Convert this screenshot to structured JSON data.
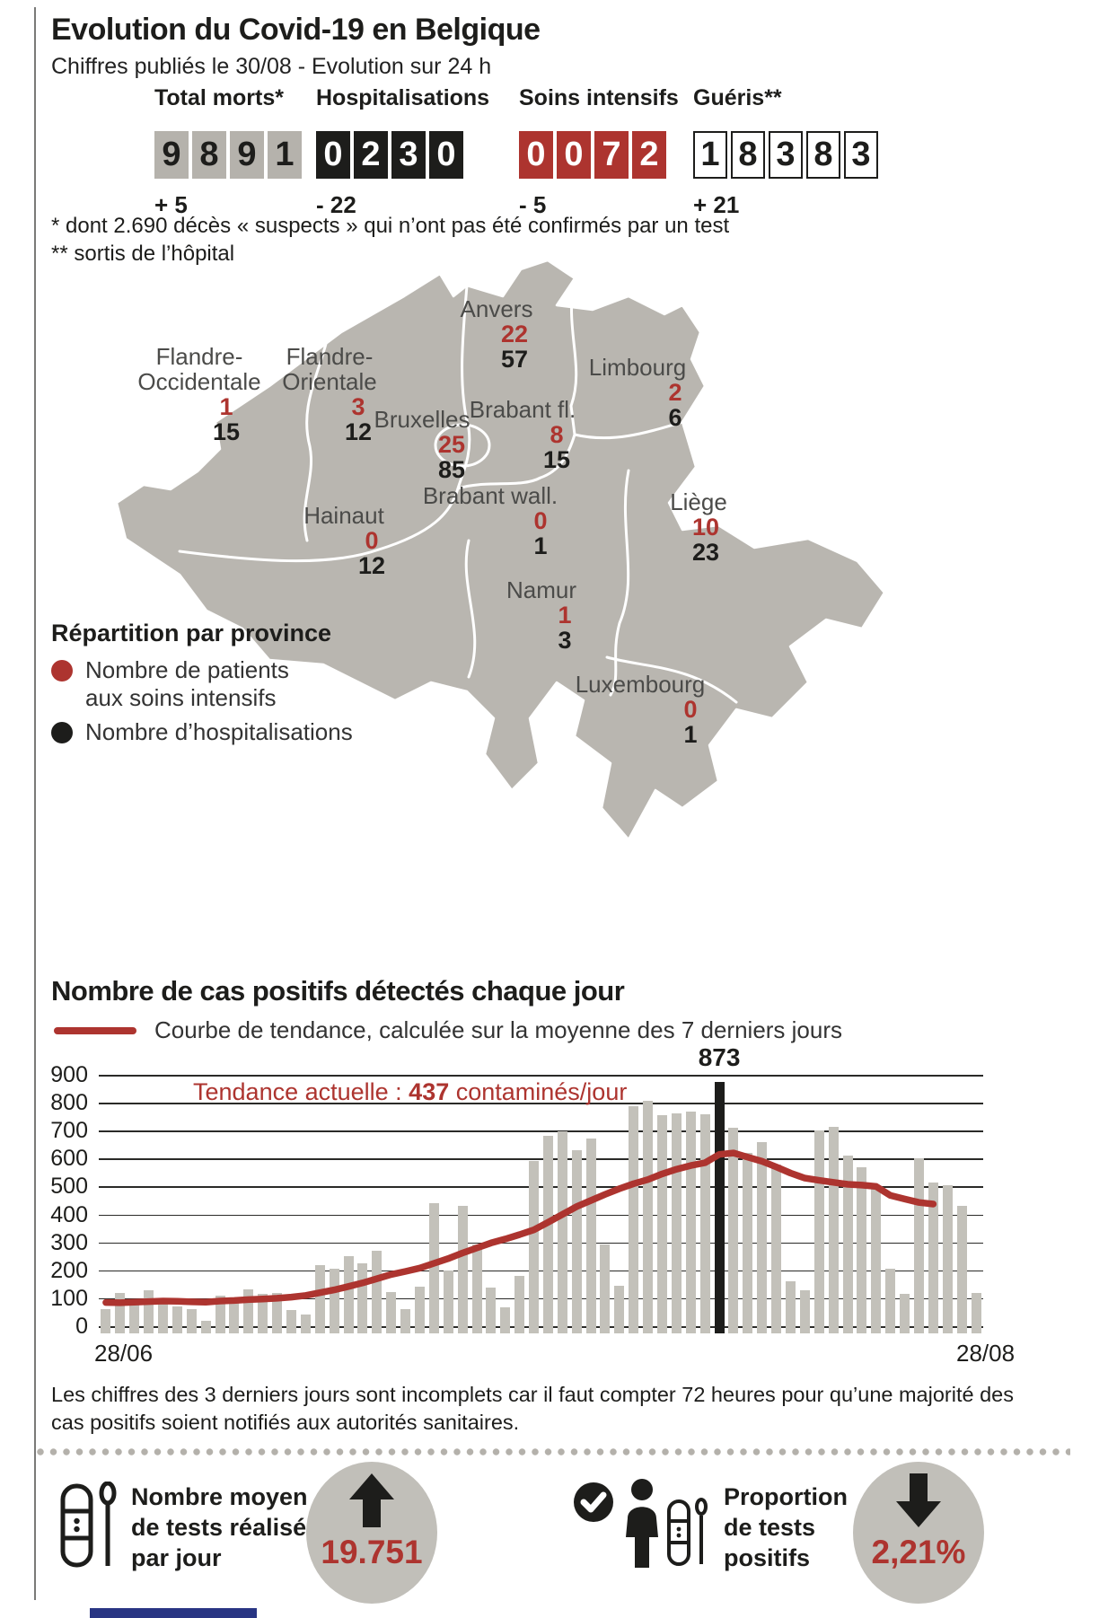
{
  "header": {
    "title": "Evolution du Covid-19 en Belgique",
    "subtitle": "Chiffres publiés le 30/08 - Evolution sur 24 h",
    "counters": [
      {
        "label": "Total morts*",
        "digits": [
          "9",
          "8",
          "9",
          "1"
        ],
        "change": "+ 5",
        "style": "gray"
      },
      {
        "label": "Hospitalisations",
        "digits": [
          "0",
          "2",
          "3",
          "0"
        ],
        "change": "- 22",
        "style": "black"
      },
      {
        "label": "Soins intensifs",
        "digits": [
          "0",
          "0",
          "7",
          "2"
        ],
        "change": "- 5",
        "style": "red"
      },
      {
        "label": "Guéris**",
        "digits": [
          "1",
          "8",
          "3",
          "8",
          "3"
        ],
        "change": "+ 21",
        "style": "outline"
      }
    ],
    "footnote_line1": "* dont 2.690 décès « suspects » qui n’ont pas été confirmés par un test",
    "footnote_line2": "** sortis de l’hôpital"
  },
  "map": {
    "legend_title": "Répartition par province",
    "legend_icu": "Nombre de patients\naux soins intensifs",
    "legend_hosp": "Nombre d’hospitalisations",
    "provinces": [
      {
        "name": "Flandre-\nOccidentale",
        "icu": "1",
        "hosp": "15"
      },
      {
        "name": "Flandre-\nOrientale",
        "icu": "3",
        "hosp": "12"
      },
      {
        "name": "Anvers",
        "icu": "22",
        "hosp": "57"
      },
      {
        "name": "Limbourg",
        "icu": "2",
        "hosp": "6"
      },
      {
        "name": "Bruxelles",
        "icu": "25",
        "hosp": "85"
      },
      {
        "name": "Brabant fl.",
        "icu": "8",
        "hosp": "15"
      },
      {
        "name": "Brabant wall.",
        "icu": "0",
        "hosp": "1"
      },
      {
        "name": "Liège",
        "icu": "10",
        "hosp": "23"
      },
      {
        "name": "Hainaut",
        "icu": "0",
        "hosp": "12"
      },
      {
        "name": "Namur",
        "icu": "1",
        "hosp": "3"
      },
      {
        "name": "Luxembourg",
        "icu": "0",
        "hosp": "1"
      }
    ]
  },
  "chart": {
    "title": "Nombre de cas positifs détectés chaque jour",
    "legend": "Courbe de tendance, calculée sur la moyenne des 7 derniers jours",
    "trend_prefix": "Tendance actuelle : ",
    "trend_value": "437",
    "trend_suffix": " contaminés/jour",
    "note": "Les chiffres des 3 derniers jours sont incomplets car il faut compter 72 heures pour qu’une majorité  des cas positifs soient notifiés aux autorités sanitaires."
  },
  "chart_data": {
    "type": "bar",
    "title": "Nombre de cas positifs détectés chaque jour",
    "xlabel": "",
    "ylabel": "",
    "x_start_label": "28/06",
    "x_end_label": "28/08",
    "ylim": [
      0,
      900
    ],
    "yticks": [
      900,
      800,
      700,
      600,
      500,
      400,
      300,
      200,
      100,
      0
    ],
    "grid": true,
    "values": [
      60,
      120,
      90,
      130,
      85,
      70,
      60,
      20,
      110,
      85,
      132,
      116,
      119,
      57,
      41,
      218,
      207,
      252,
      226,
      271,
      123,
      62,
      140,
      440,
      200,
      430,
      292,
      138,
      69,
      180,
      590,
      683,
      698,
      630,
      672,
      294,
      145,
      786,
      808,
      757,
      761,
      767,
      760,
      873,
      710,
      620,
      660,
      580,
      160,
      130,
      700,
      715,
      610,
      570,
      500,
      205,
      115,
      600,
      515,
      505,
      430,
      120
    ],
    "highlight_index": 43,
    "highlight_label": "873",
    "trend_series_name": "Courbe de tendance (moyenne 7 jours)",
    "trend": [
      85,
      84,
      86,
      88,
      90,
      89,
      87,
      86,
      90,
      92,
      95,
      97,
      100,
      104,
      110,
      120,
      130,
      142,
      155,
      170,
      185,
      196,
      208,
      225,
      242,
      262,
      280,
      298,
      312,
      328,
      345,
      372,
      400,
      428,
      450,
      472,
      492,
      510,
      525,
      545,
      562,
      575,
      585,
      615,
      620,
      605,
      590,
      570,
      548,
      530,
      522,
      515,
      508,
      505,
      500,
      468,
      455,
      443,
      437
    ],
    "bar_color": "#c3c1ba",
    "highlight_color": "#1d1d1b",
    "trend_color": "#ad342f"
  },
  "footer": {
    "left": {
      "label": "Nombre moyen\nde tests réalisés\npar jour",
      "value": "19.751",
      "direction": "up"
    },
    "right": {
      "label": "Proportion\nde tests\npositifs",
      "value": "2,21%",
      "direction": "down"
    }
  },
  "colors": {
    "accent_red": "#ad342f",
    "ink_black": "#1d1d1b",
    "map_gray": "#b9b6b0",
    "bar_gray": "#c3c1ba",
    "counter_gray": "#b5b2ac",
    "circle_gray": "#c1bfb9",
    "brand_blue": "#283583"
  }
}
